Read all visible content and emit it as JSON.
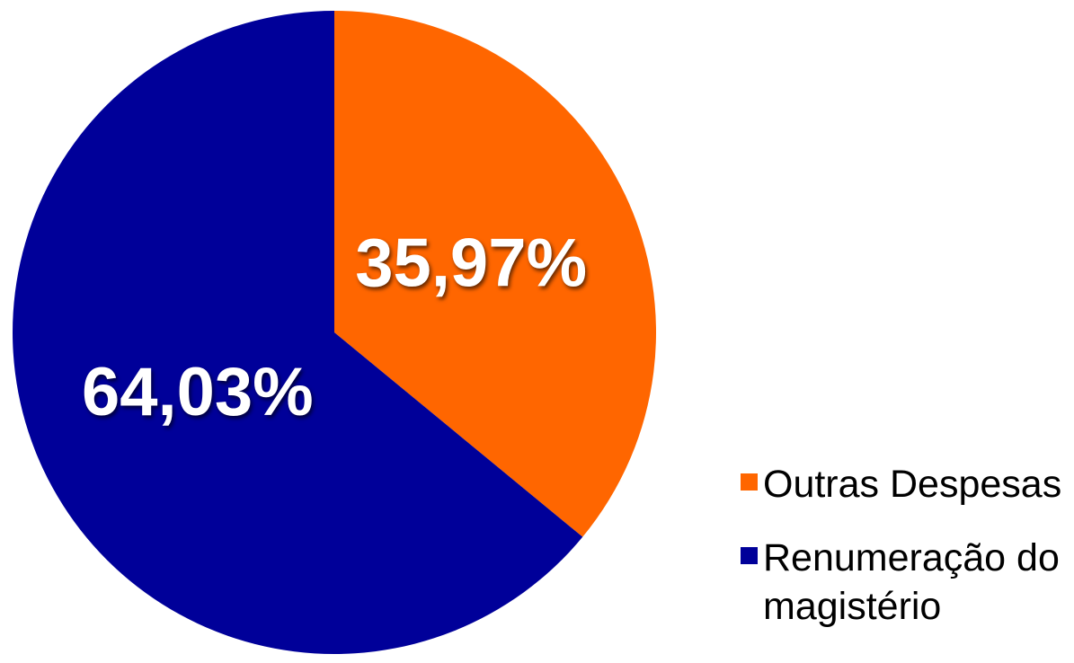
{
  "chart_data": {
    "type": "pie",
    "categories": [
      "Outras Despesas",
      "Renumeração do magistério"
    ],
    "values": [
      35.97,
      64.03
    ],
    "value_labels": [
      "35,97%",
      "64,03%"
    ],
    "colors": [
      "#ff6600",
      "#000099"
    ],
    "legend": "right"
  }
}
